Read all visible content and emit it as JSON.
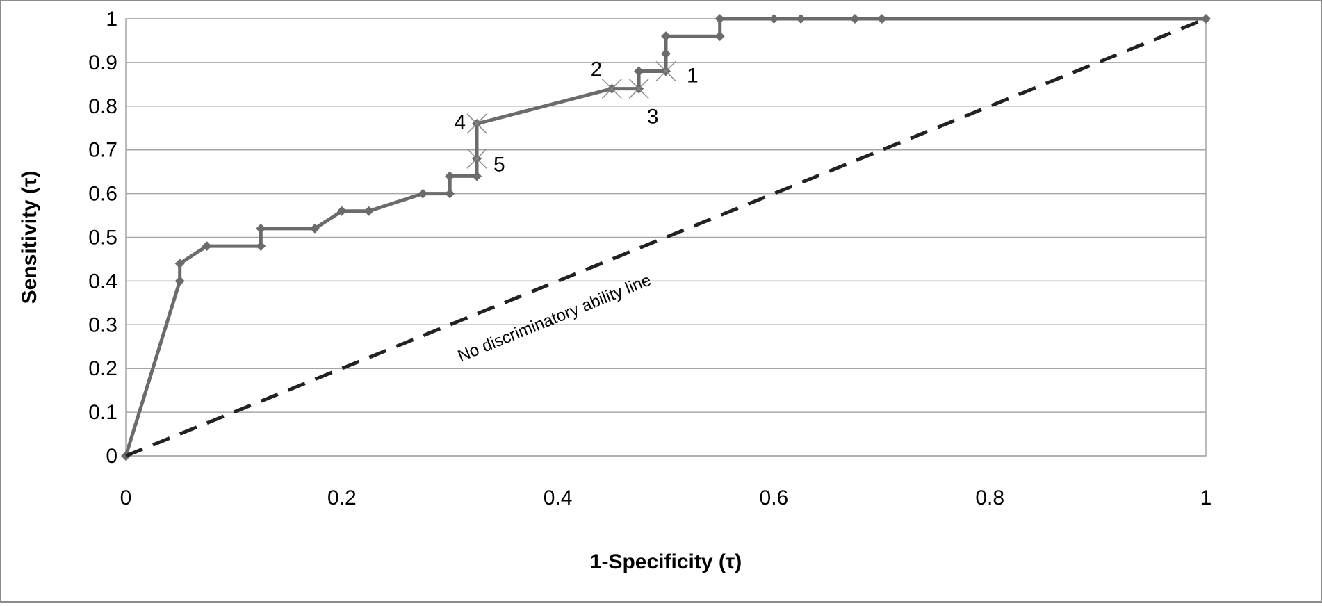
{
  "chart_data": {
    "type": "line",
    "title": "",
    "xlabel": "1-Specificity (τ)",
    "ylabel": "Sensitivity (τ)",
    "xlim": [
      0,
      1
    ],
    "ylim": [
      0,
      1
    ],
    "x_ticks": [
      "0",
      "0.2",
      "0.4",
      "0.6",
      "0.8",
      "1"
    ],
    "y_ticks": [
      "0",
      "0.1",
      "0.2",
      "0.3",
      "0.4",
      "0.5",
      "0.6",
      "0.7",
      "0.8",
      "0.9",
      "1"
    ],
    "grid": "horizontal",
    "legend": "none",
    "colors": {
      "roc": "#6b6b6b",
      "reference": "#222222",
      "grid": "#a6a6a6",
      "frame": "#8c8c8c"
    },
    "series": [
      {
        "style": "step-line-diamond-markers",
        "points": [
          [
            0,
            0
          ],
          [
            0.05,
            0.4
          ],
          [
            0.05,
            0.44
          ],
          [
            0.075,
            0.48
          ],
          [
            0.125,
            0.48
          ],
          [
            0.125,
            0.52
          ],
          [
            0.175,
            0.52
          ],
          [
            0.2,
            0.56
          ],
          [
            0.225,
            0.56
          ],
          [
            0.275,
            0.6
          ],
          [
            0.3,
            0.6
          ],
          [
            0.3,
            0.64
          ],
          [
            0.325,
            0.64
          ],
          [
            0.325,
            0.68
          ],
          [
            0.325,
            0.76
          ],
          [
            0.45,
            0.84
          ],
          [
            0.475,
            0.84
          ],
          [
            0.475,
            0.88
          ],
          [
            0.5,
            0.88
          ],
          [
            0.5,
            0.92
          ],
          [
            0.5,
            0.96
          ],
          [
            0.55,
            0.96
          ],
          [
            0.55,
            1
          ],
          [
            0.6,
            1
          ],
          [
            0.625,
            1
          ],
          [
            0.675,
            1
          ],
          [
            0.7,
            1
          ],
          [
            1,
            1
          ]
        ]
      },
      {
        "style": "dashed-reference",
        "points": [
          [
            0,
            0
          ],
          [
            1,
            1
          ]
        ]
      }
    ],
    "reference_label": "No discriminatory ability line",
    "annotations": [
      {
        "label": "1",
        "x": 0.5,
        "y": 0.88
      },
      {
        "label": "2",
        "x": 0.45,
        "y": 0.84
      },
      {
        "label": "3",
        "x": 0.475,
        "y": 0.84
      },
      {
        "label": "4",
        "x": 0.325,
        "y": 0.76
      },
      {
        "label": "5",
        "x": 0.325,
        "y": 0.68
      }
    ]
  }
}
